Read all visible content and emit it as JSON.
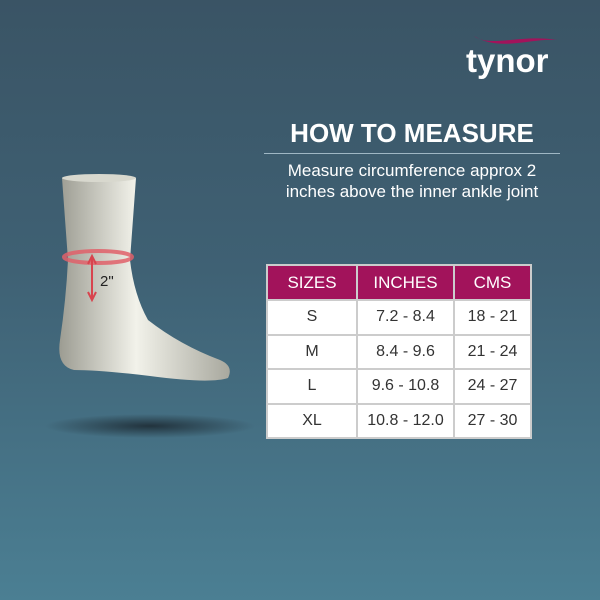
{
  "brand": {
    "name": "tynor",
    "accent": "#a2135b"
  },
  "heading": "HOW TO MEASURE",
  "instructions": [
    "Measure circumference approx 2",
    "inches above the inner ankle joint"
  ],
  "measure_label": "2\"",
  "table": {
    "headers": [
      "SIZES",
      "INCHES",
      "CMS"
    ],
    "rows": [
      [
        "S",
        "7.2 - 8.4",
        "18 - 21"
      ],
      [
        "M",
        "8.4 - 9.6",
        "21 - 24"
      ],
      [
        "L",
        "9.6 - 10.8",
        "24 - 27"
      ],
      [
        "XL",
        "10.8 - 12.0",
        "27 - 30"
      ]
    ]
  }
}
